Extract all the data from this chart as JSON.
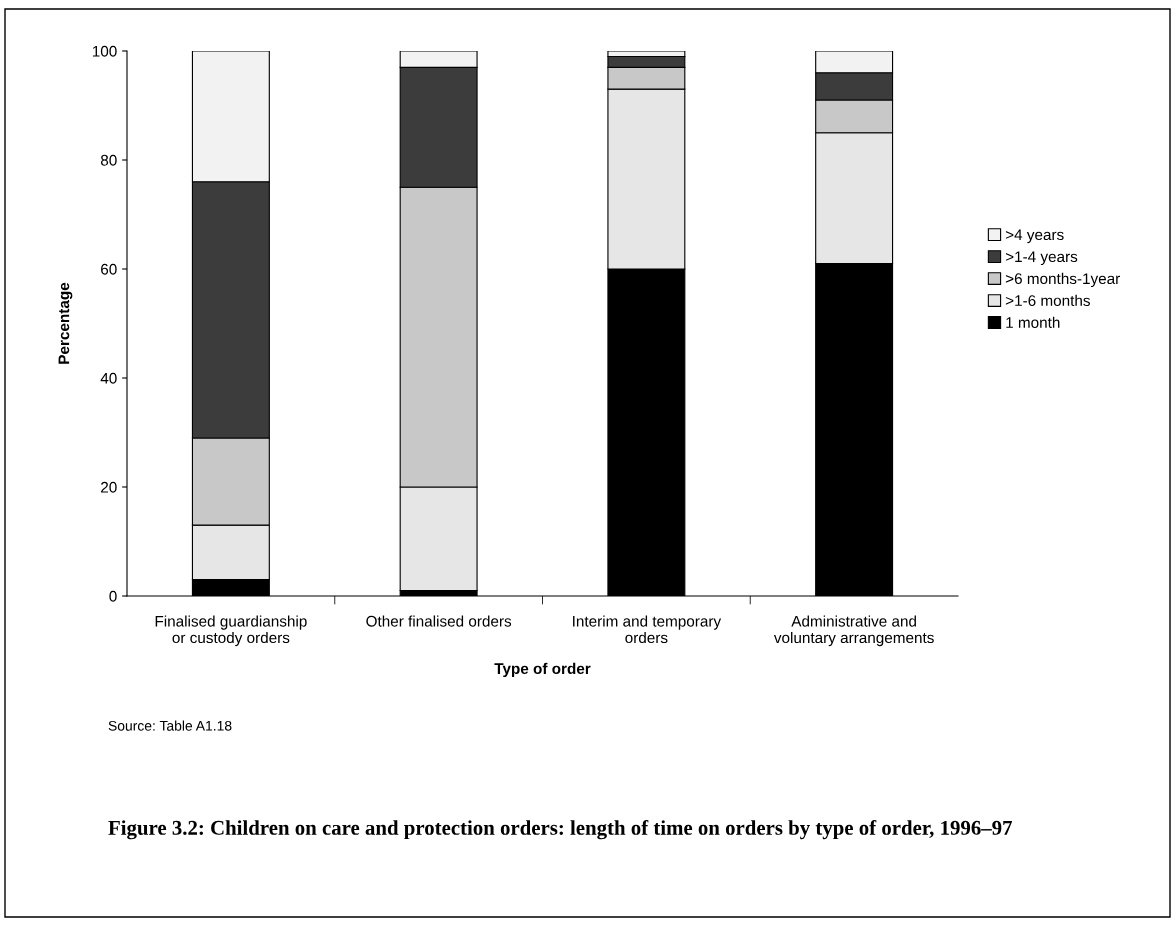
{
  "chart_data": {
    "type": "bar",
    "stacked": true,
    "title": "Figure 3.2: Children on care and protection orders: length of time on orders by type of order, 1996–97",
    "xlabel": "Type of order",
    "ylabel": "Percentage",
    "categories": [
      "Finalised guardianship\nor custody orders",
      "Other finalised orders",
      "Interim and temporary\norders",
      "Administrative and\nvoluntary arrangements"
    ],
    "series": [
      {
        "name": "1 month",
        "color": "#000000",
        "values": [
          3,
          1,
          60,
          61
        ]
      },
      {
        "name": ">1-6 months",
        "color": "#e6e6e6",
        "values": [
          10,
          19,
          33,
          24
        ]
      },
      {
        "name": ">6 months-1year",
        "color": "#c8c8c8",
        "values": [
          16,
          55,
          4,
          6
        ]
      },
      {
        "name": ">1-4 years",
        "color": "#3c3c3c",
        "values": [
          47,
          22,
          2,
          5
        ]
      },
      {
        "name": ">4 years",
        "color": "#f2f2f2",
        "values": [
          24,
          3,
          1,
          4
        ]
      }
    ],
    "ylim": [
      0,
      100
    ],
    "yticks": [
      0,
      20,
      40,
      60,
      80,
      100
    ],
    "grid": false,
    "legend": "right",
    "annotations": [
      "Source: Table A1.18"
    ]
  }
}
